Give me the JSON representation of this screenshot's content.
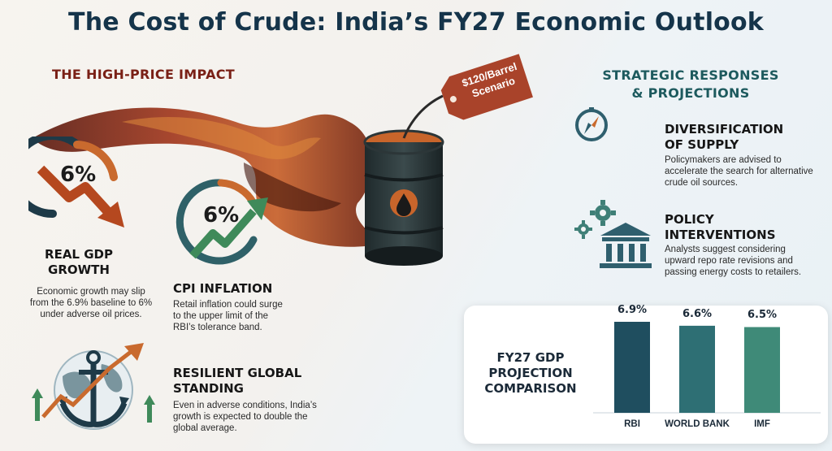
{
  "title": "The Cost of Crude: India’s FY27 Economic Outlook",
  "left_section": {
    "heading": "THE HIGH-PRICE IMPACT",
    "price_tag": [
      "$120/Barrel",
      "Scenario"
    ],
    "gdp": {
      "value": "6%",
      "heading_line1": "REAL GDP",
      "heading_line2": "GROWTH",
      "body": [
        "Economic growth may slip",
        "from the 6.9% baseline to 6%",
        "under adverse oil prices."
      ]
    },
    "cpi": {
      "value": "6%",
      "heading": "CPI INFLATION",
      "body": [
        "Retail inflation could surge",
        "to the upper limit of the",
        "RBI’s tolerance band."
      ]
    },
    "global": {
      "heading_line1": "RESILIENT GLOBAL",
      "heading_line2": "STANDING",
      "body": [
        "Even in adverse conditions, India’s",
        "growth is expected to double the",
        "global average."
      ]
    }
  },
  "right_section": {
    "heading_line1": "STRATEGIC RESPONSES",
    "heading_line2": "& PROJECTIONS",
    "diversification": {
      "heading_line1": "DIVERSIFICATION",
      "heading_line2": "OF SUPPLY",
      "body": [
        "Policymakers are advised to",
        "accelerate the search for alternative",
        "crude oil sources."
      ]
    },
    "policy": {
      "heading_line1": "POLICY",
      "heading_line2": "INTERVENTIONS",
      "body": [
        "Analysts suggest considering",
        "upward repo rate revisions and",
        "passing energy costs to retailers."
      ]
    }
  },
  "chart_data": {
    "type": "bar",
    "title": [
      "FY27 GDP",
      "PROJECTION",
      "COMPARISON"
    ],
    "categories": [
      "RBI",
      "WORLD BANK",
      "IMF"
    ],
    "values": [
      6.9,
      6.6,
      6.5
    ],
    "value_labels": [
      "6.9%",
      "6.6%",
      "6.5%"
    ],
    "colors": [
      "#1f4e5f",
      "#2e6f74",
      "#3f8a78"
    ]
  },
  "colors": {
    "title": "#15344a",
    "accent_red": "#7a2016",
    "accent_teal": "#1d5a5e",
    "arrow_down": "#b5481f",
    "arrow_up": "#3f8a5a"
  },
  "icons": [
    "oil-barrel-icon",
    "oil-drop-icon",
    "price-tag-icon",
    "compass-icon",
    "gears-icon",
    "bank-building-icon",
    "anchor-globe-icon",
    "down-arrow-ring-icon",
    "up-arrow-ring-icon"
  ]
}
